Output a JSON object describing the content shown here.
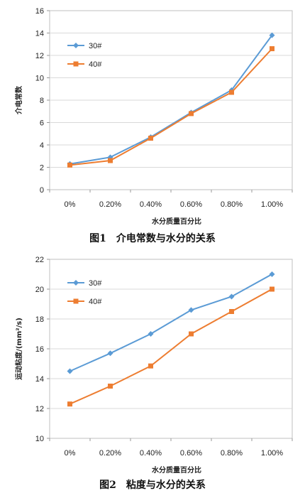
{
  "chart_data": [
    {
      "type": "line",
      "categories": [
        "0%",
        "0.20%",
        "0.40%",
        "0.60%",
        "0.80%",
        "1.00%"
      ],
      "series": [
        {
          "name": "30#",
          "values": [
            2.3,
            2.9,
            4.7,
            6.9,
            8.9,
            13.8
          ],
          "color": "#5B9BD5",
          "marker": "diamond"
        },
        {
          "name": "40#",
          "values": [
            2.2,
            2.6,
            4.6,
            6.8,
            8.7,
            12.6
          ],
          "color": "#ED7D31",
          "marker": "square"
        }
      ],
      "xlabel": "水分质量百分比",
      "ylabel": "介电常数",
      "ylim": [
        0,
        16
      ],
      "ystep": 2,
      "grid": true,
      "legend": "top-left",
      "caption": "图1　介电常数与水分的关系"
    },
    {
      "type": "line",
      "categories": [
        "0%",
        "0.20%",
        "0.40%",
        "0.60%",
        "0.80%",
        "1.00%"
      ],
      "series": [
        {
          "name": "30#",
          "values": [
            14.5,
            15.7,
            17.0,
            18.6,
            19.5,
            21.0
          ],
          "color": "#5B9BD5",
          "marker": "diamond"
        },
        {
          "name": "40#",
          "values": [
            12.3,
            13.5,
            14.85,
            17.0,
            18.5,
            20.0
          ],
          "color": "#ED7D31",
          "marker": "square"
        }
      ],
      "xlabel": "水分质量百分比",
      "ylabel": "运动粘度/(mm²/s)",
      "ylim": [
        10,
        22
      ],
      "ystep": 2,
      "grid": true,
      "legend": "top-left",
      "caption": "图2　粘度与水分的关系"
    }
  ]
}
